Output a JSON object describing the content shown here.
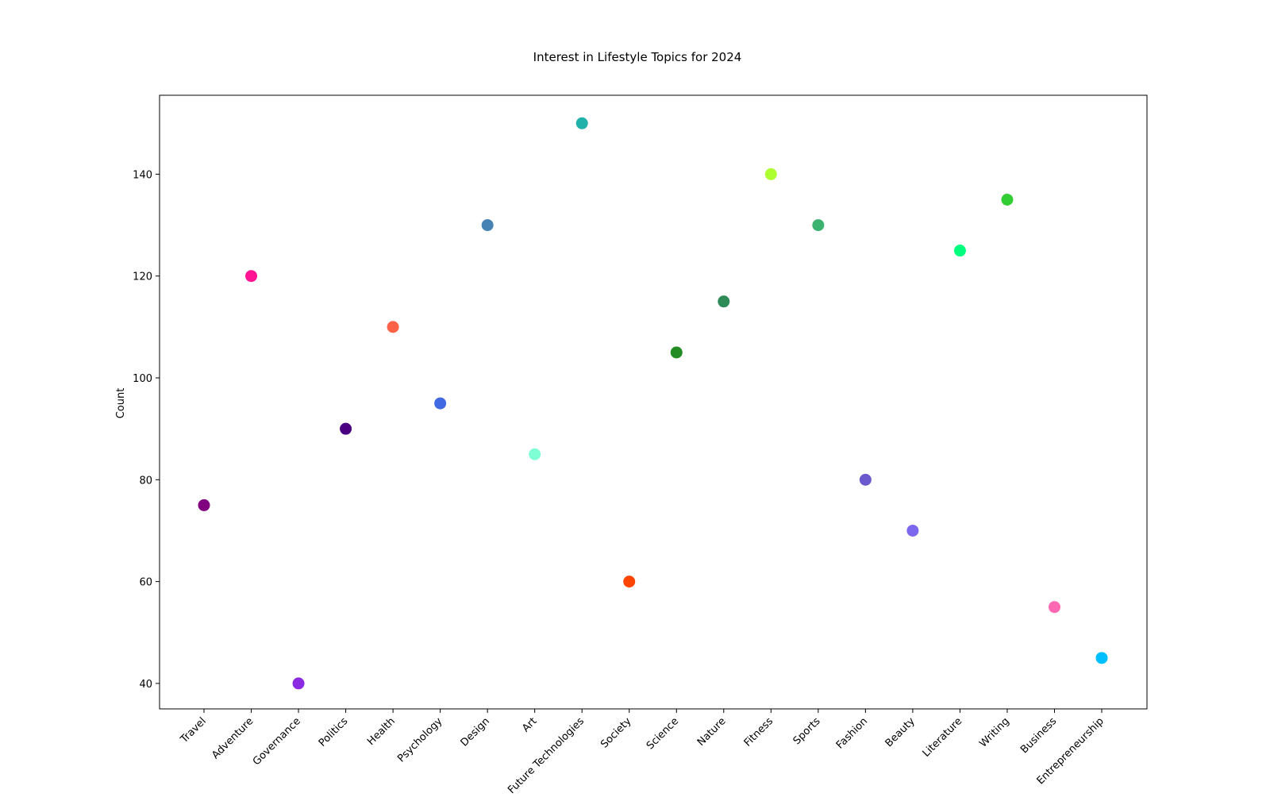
{
  "chart_data": {
    "type": "scatter",
    "title": "Interest in Lifestyle Topics for 2024",
    "xlabel": "",
    "ylabel": "Count",
    "ylim": [
      35,
      155.5
    ],
    "yticks": [
      40,
      60,
      80,
      100,
      120,
      140
    ],
    "grid": false,
    "legend": "none",
    "categories": [
      "Travel",
      "Adventure",
      "Governance",
      "Politics",
      "Health",
      "Psychology",
      "Design",
      "Art",
      "Future Technologies",
      "Society",
      "Science",
      "Nature",
      "Fitness",
      "Sports",
      "Fashion",
      "Beauty",
      "Literature",
      "Writing",
      "Business",
      "Entrepreneurship"
    ],
    "values": [
      75,
      120,
      40,
      90,
      110,
      95,
      130,
      85,
      150,
      60,
      105,
      115,
      140,
      130,
      80,
      70,
      125,
      135,
      55,
      45
    ],
    "colors": [
      "#800080",
      "#FF1493",
      "#8A2BE2",
      "#4B0082",
      "#FF6347",
      "#4169E1",
      "#4682B4",
      "#7FFFD4",
      "#20B2AA",
      "#FF4500",
      "#228B22",
      "#2E8B57",
      "#ADFF2F",
      "#3CB371",
      "#6A5ACD",
      "#7B68EE",
      "#00FF7F",
      "#32CD32",
      "#FF69B4",
      "#00BFFF"
    ]
  }
}
